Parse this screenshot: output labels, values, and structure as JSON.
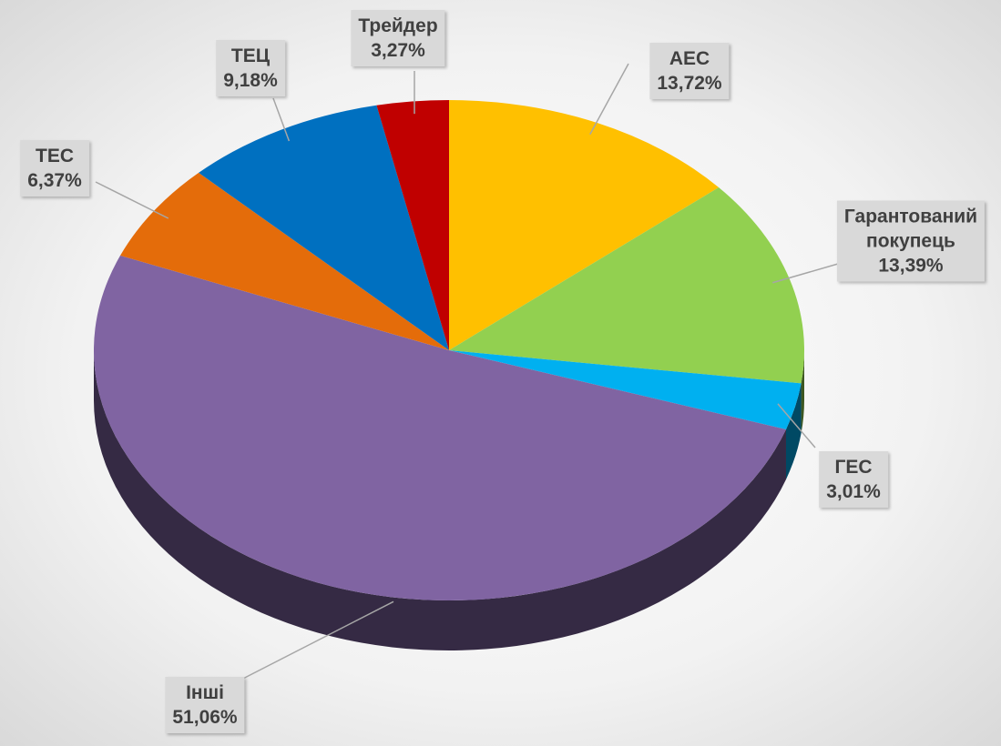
{
  "chart_data": {
    "type": "pie",
    "categories": [
      "АЕС",
      "Гарантований покупець",
      "ГЕС",
      "Інші",
      "ТЕС",
      "ТЕЦ",
      "Трейдер"
    ],
    "values": [
      13.72,
      13.39,
      3.01,
      51.06,
      6.37,
      9.18,
      3.27
    ],
    "value_labels": [
      "13,72%",
      "13,39%",
      "3,01%",
      "51,06%",
      "6,37%",
      "9,18%",
      "3,27%"
    ],
    "colors": [
      "#ffc000",
      "#92d050",
      "#00b0f0",
      "#8064a2",
      "#e46c0a",
      "#0070c0",
      "#c00000"
    ]
  }
}
